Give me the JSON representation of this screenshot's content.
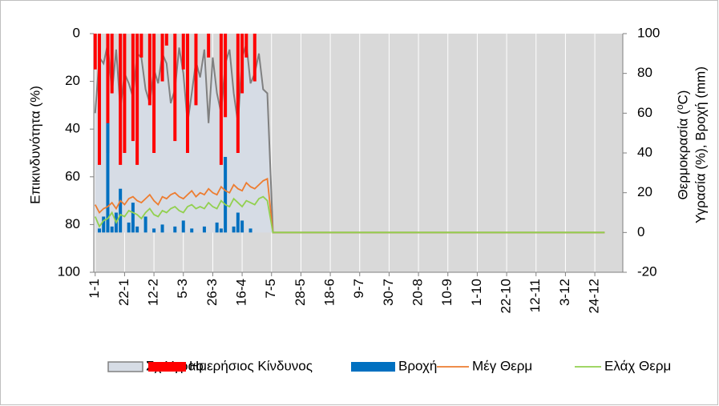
{
  "chart_data": {
    "type": "combo",
    "y_label": "Επικινδυνότητα (%)",
    "y2_label": [
      "Θερμοκρασία (⁰C)",
      "Υγρασία (%), Βροχή (mm)"
    ],
    "x": [
      1,
      4,
      7,
      10,
      13,
      16,
      19,
      22,
      25,
      28,
      31,
      34,
      37,
      40,
      43,
      46,
      49,
      52,
      55,
      58,
      61,
      64,
      67,
      70,
      73,
      76,
      79,
      82,
      85,
      88,
      91,
      94,
      97,
      100,
      103,
      106,
      109,
      112,
      115,
      118,
      121,
      124,
      128,
      365
    ],
    "xlim": [
      0,
      378
    ],
    "xticks": [
      {
        "value": 1,
        "label": "1-1"
      },
      {
        "value": 22,
        "label": "22-1"
      },
      {
        "value": 43,
        "label": "12-2"
      },
      {
        "value": 64,
        "label": "5-3"
      },
      {
        "value": 85,
        "label": "26-3"
      },
      {
        "value": 106,
        "label": "16-4"
      },
      {
        "value": 127,
        "label": "7-5"
      },
      {
        "value": 148,
        "label": "28-5"
      },
      {
        "value": 169,
        "label": "18-6"
      },
      {
        "value": 190,
        "label": "9-7"
      },
      {
        "value": 211,
        "label": "30-7"
      },
      {
        "value": 232,
        "label": "20-8"
      },
      {
        "value": 253,
        "label": "10-9"
      },
      {
        "value": 274,
        "label": "1-10"
      },
      {
        "value": 295,
        "label": "22-10"
      },
      {
        "value": 316,
        "label": "12-11"
      },
      {
        "value": 337,
        "label": "3-12"
      },
      {
        "value": 358,
        "label": "24-12"
      }
    ],
    "ylim": [
      0,
      100
    ],
    "y_inverted": true,
    "yticks": [
      0,
      20,
      40,
      60,
      80,
      100
    ],
    "y2lim": [
      -20,
      100
    ],
    "y2ticks": [
      -20,
      0,
      20,
      40,
      60,
      80,
      100
    ],
    "grid": true,
    "series": [
      {
        "name": "Σχ Υγρασ",
        "kind": "area",
        "axis": "y2",
        "color": "#d6dce5",
        "line_color": "#808080",
        "values": [
          60,
          88,
          85,
          95,
          70,
          92,
          62,
          80,
          75,
          68,
          90,
          88,
          72,
          65,
          82,
          75,
          90,
          85,
          65,
          72,
          93,
          80,
          55,
          70,
          86,
          78,
          92,
          55,
          88,
          70,
          60,
          85,
          92,
          70,
          55,
          88,
          95,
          75,
          80,
          90,
          72,
          70,
          0,
          0
        ]
      },
      {
        "name": "Ημερήσιος Κίνδυνος",
        "kind": "bar",
        "axis": "y",
        "color": "#ff0000",
        "values": [
          15,
          55,
          0,
          50,
          25,
          0,
          55,
          50,
          0,
          45,
          55,
          10,
          0,
          30,
          50,
          0,
          20,
          5,
          0,
          45,
          0,
          15,
          50,
          0,
          30,
          0,
          0,
          10,
          0,
          0,
          55,
          35,
          0,
          0,
          50,
          25,
          10,
          0,
          20,
          0,
          0,
          0,
          0,
          0
        ]
      },
      {
        "name": "Βροχή",
        "kind": "bar",
        "axis": "y2",
        "color": "#0070c0",
        "values": [
          0,
          2,
          8,
          55,
          3,
          10,
          22,
          0,
          5,
          15,
          3,
          0,
          8,
          0,
          2,
          0,
          4,
          0,
          0,
          3,
          0,
          6,
          0,
          2,
          0,
          0,
          3,
          0,
          0,
          5,
          2,
          38,
          0,
          3,
          10,
          6,
          0,
          2,
          0,
          0,
          0,
          0,
          0,
          0
        ]
      },
      {
        "name": "Μέγ Θερμ",
        "kind": "line",
        "axis": "y2",
        "color": "#ed7d31",
        "values": [
          14,
          10,
          12,
          13,
          15,
          12,
          16,
          14,
          17,
          18,
          16,
          15,
          17,
          19,
          16,
          14,
          18,
          17,
          19,
          20,
          18,
          17,
          19,
          21,
          18,
          20,
          19,
          22,
          20,
          19,
          23,
          21,
          20,
          24,
          22,
          21,
          25,
          23,
          22,
          24,
          26,
          27,
          0,
          0
        ]
      },
      {
        "name": "Ελάχ Θερμ",
        "kind": "line",
        "axis": "y2",
        "color": "#92d050",
        "values": [
          8,
          3,
          6,
          7,
          10,
          5,
          9,
          8,
          11,
          10,
          9,
          7,
          10,
          12,
          9,
          8,
          11,
          10,
          12,
          13,
          11,
          10,
          13,
          14,
          12,
          13,
          12,
          15,
          13,
          12,
          16,
          14,
          13,
          17,
          15,
          13,
          16,
          15,
          14,
          17,
          18,
          16,
          0,
          0
        ]
      }
    ]
  }
}
